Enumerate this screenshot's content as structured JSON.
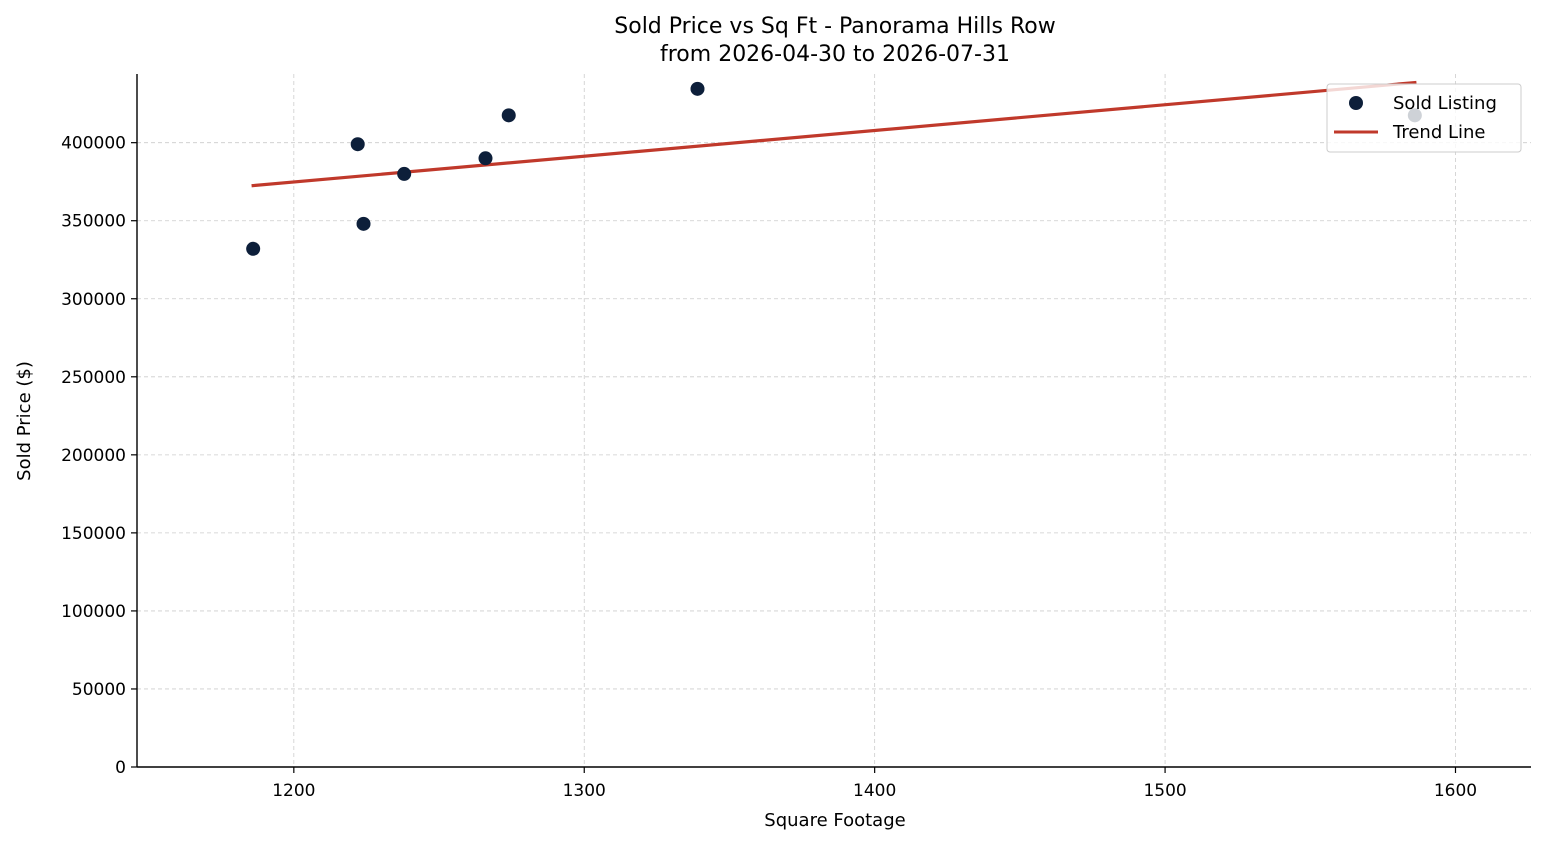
{
  "chart_data": {
    "type": "scatter",
    "title_lines": [
      "Sold Price vs Sq Ft - Panorama Hills Row",
      "from 2026-04-30 to 2026-07-31"
    ],
    "xlabel": "Square Footage",
    "ylabel": "Sold Price ($)",
    "xlim": [
      1146,
      1626
    ],
    "ylim": [
      0,
      444000
    ],
    "xticks": [
      1200,
      1300,
      1400,
      1500,
      1600
    ],
    "yticks": [
      0,
      50000,
      100000,
      150000,
      200000,
      250000,
      300000,
      350000,
      400000
    ],
    "grid": true,
    "legend_position": "top-right",
    "colors": {
      "points": "#0d1f3a",
      "trend": "#c0392b"
    },
    "series": [
      {
        "name": "Sold Listing",
        "kind": "scatter",
        "points": [
          {
            "x": 1186,
            "y": 332000
          },
          {
            "x": 1222,
            "y": 399000
          },
          {
            "x": 1224,
            "y": 348000
          },
          {
            "x": 1238,
            "y": 380000
          },
          {
            "x": 1266,
            "y": 390000
          },
          {
            "x": 1274,
            "y": 417500
          },
          {
            "x": 1339,
            "y": 434500
          },
          {
            "x": 1586,
            "y": 417500
          }
        ]
      },
      {
        "name": "Trend Line",
        "kind": "line",
        "points": [
          {
            "x": 1186,
            "y": 372500
          },
          {
            "x": 1586,
            "y": 438500
          }
        ]
      }
    ]
  }
}
